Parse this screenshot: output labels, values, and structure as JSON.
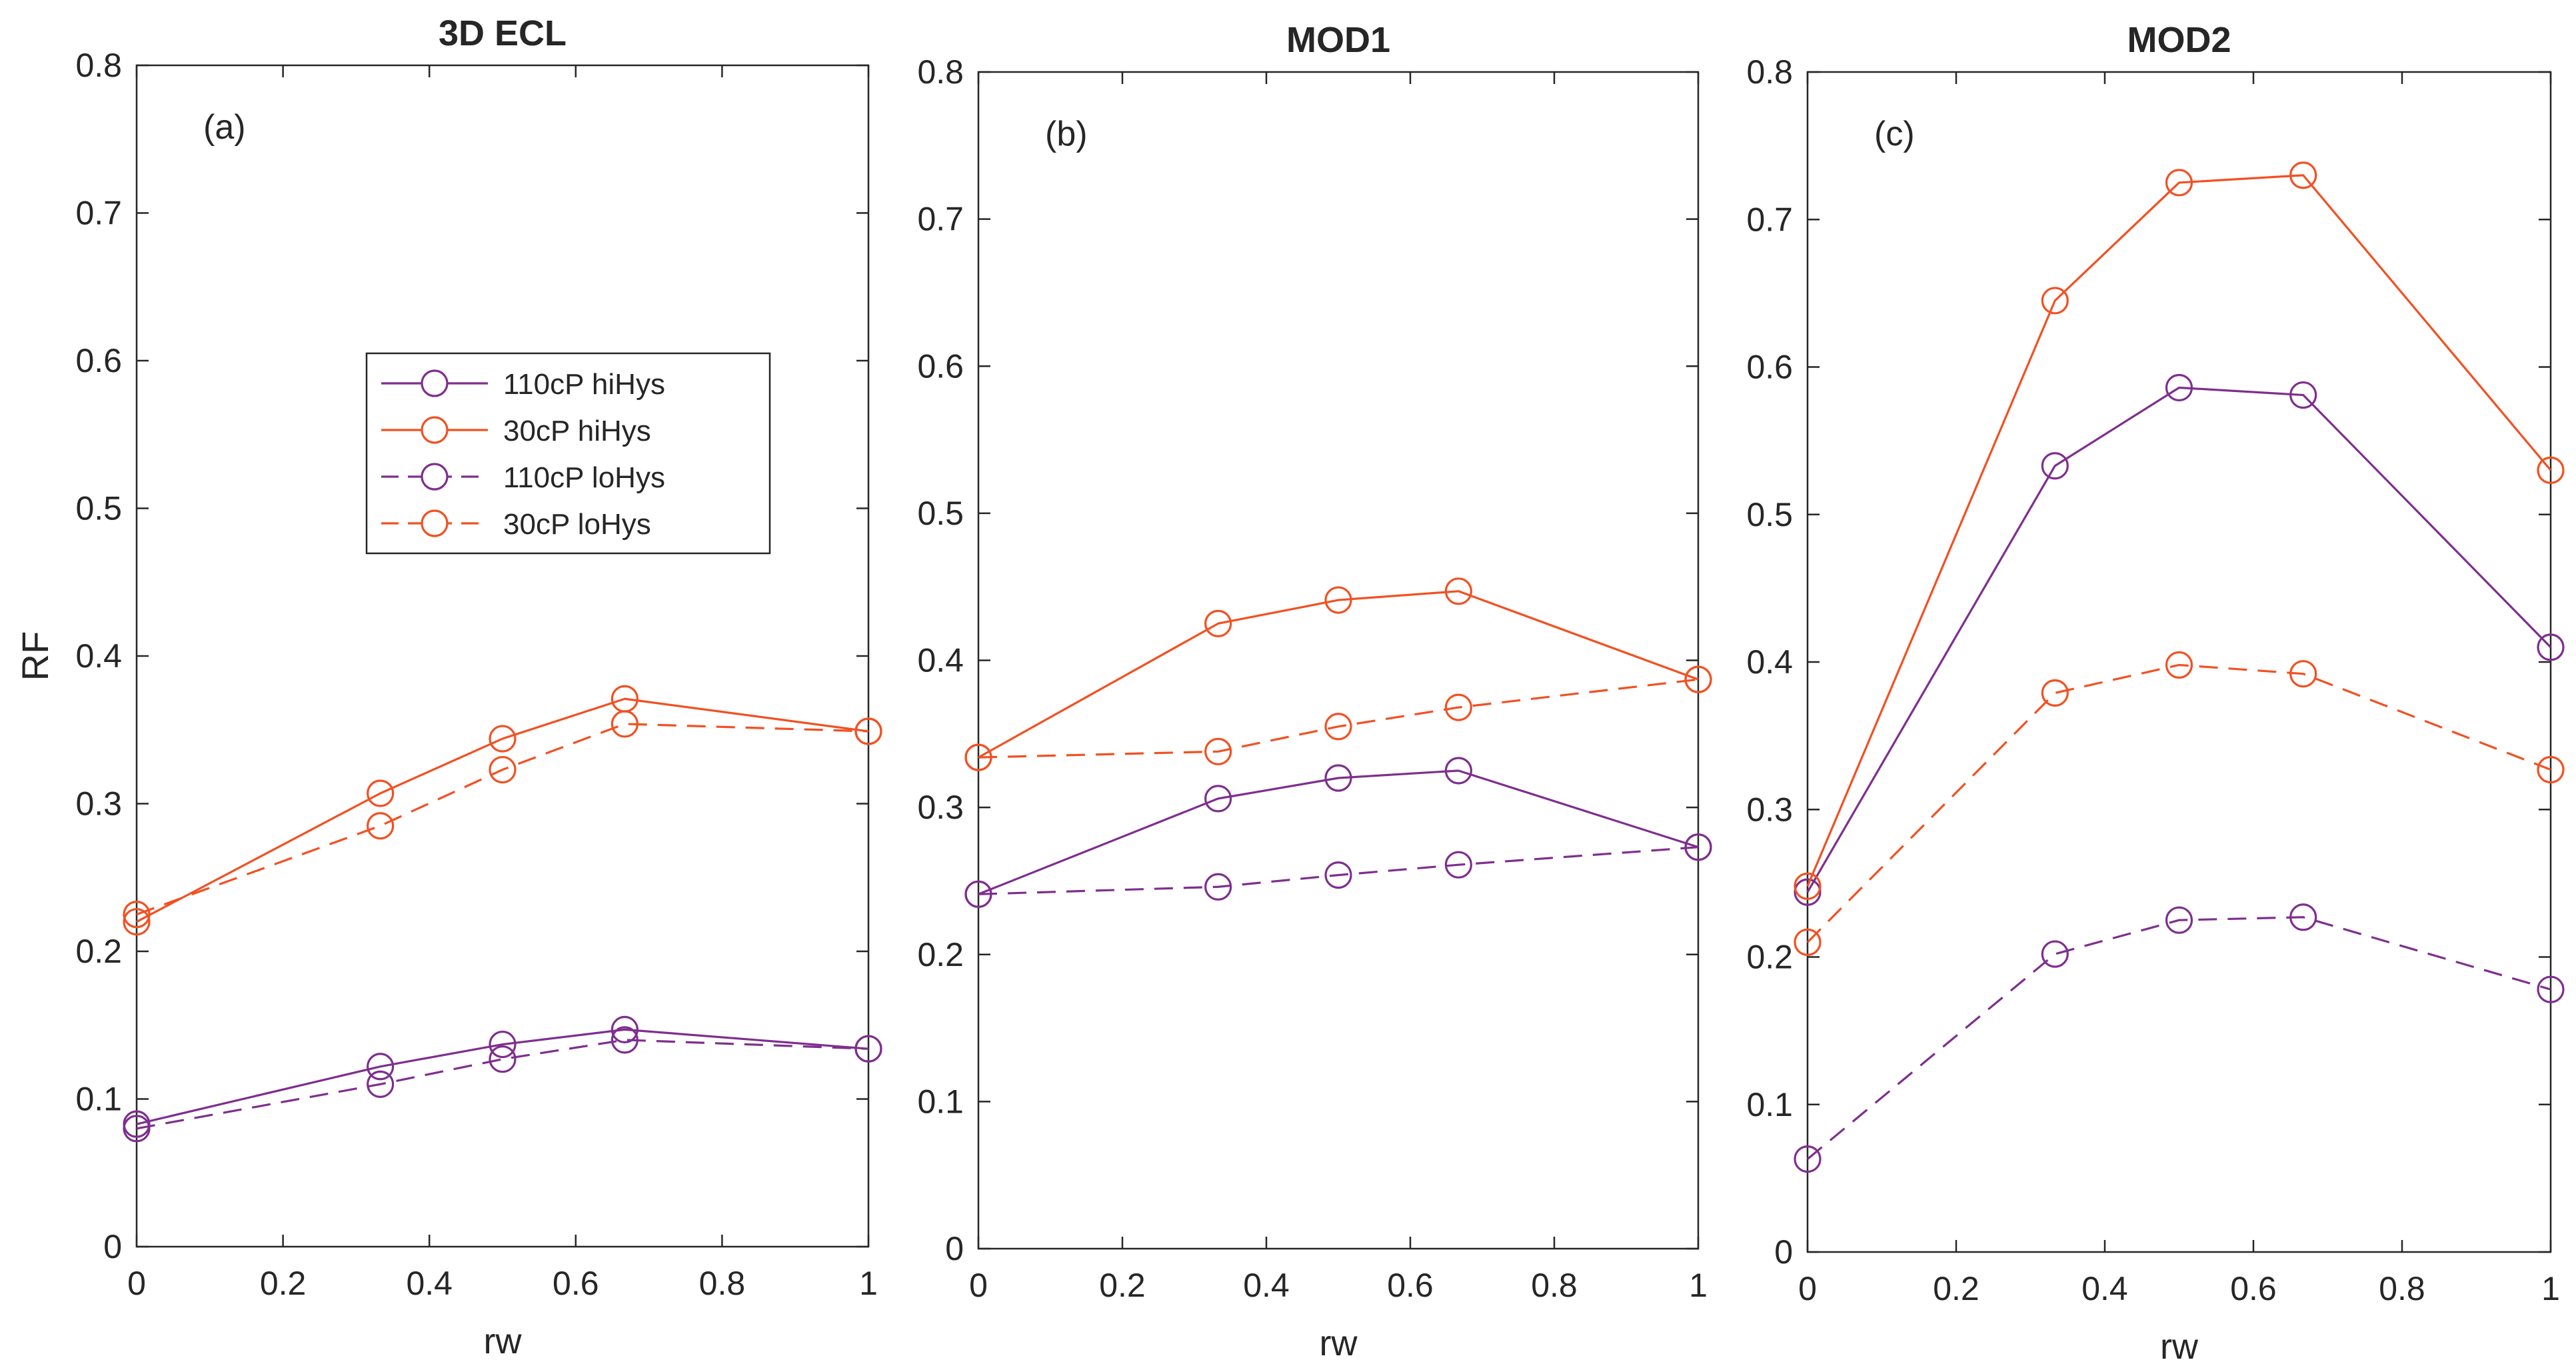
{
  "figure": {
    "ylabel": "RF",
    "legend": {
      "placement": "inside panel (a), upper-right area",
      "entries": [
        {
          "label": "110cP hiHys",
          "color": "#7E2F8E",
          "dash": "solid",
          "marker": "circle"
        },
        {
          "label": "30cP hiHys",
          "color": "#F25022",
          "dash": "solid",
          "marker": "circle"
        },
        {
          "label": "110cP loHys",
          "color": "#7E2F8E",
          "dash": "dashed",
          "marker": "circle"
        },
        {
          "label": "30cP loHys",
          "color": "#F25022",
          "dash": "dashed",
          "marker": "circle"
        }
      ]
    }
  },
  "chart_data": [
    {
      "type": "line",
      "title": "3D ECL",
      "panel_label": "(a)",
      "xlabel": "rw",
      "ylabel": "RF",
      "xlim": [
        0,
        1
      ],
      "ylim": [
        0,
        0.8
      ],
      "xticks": [
        "0",
        "0.2",
        "0.4",
        "0.6",
        "0.8",
        "1"
      ],
      "yticks": [
        "0",
        "0.1",
        "0.2",
        "0.3",
        "0.4",
        "0.5",
        "0.6",
        "0.7",
        "0.8"
      ],
      "x": [
        0,
        0.333,
        0.5,
        0.667,
        1
      ],
      "series": [
        {
          "name": "110cP hiHys",
          "color": "#7E2F8E",
          "dash": "solid",
          "values": [
            0.083,
            0.122,
            0.137,
            0.147,
            0.134
          ]
        },
        {
          "name": "30cP hiHys",
          "color": "#F25022",
          "dash": "solid",
          "values": [
            0.22,
            0.307,
            0.344,
            0.371,
            0.349
          ]
        },
        {
          "name": "110cP loHys",
          "color": "#7E2F8E",
          "dash": "dashed",
          "values": [
            0.08,
            0.11,
            0.127,
            0.14,
            0.134
          ]
        },
        {
          "name": "30cP loHys",
          "color": "#F25022",
          "dash": "dashed",
          "values": [
            0.225,
            0.285,
            0.323,
            0.354,
            0.349
          ]
        }
      ]
    },
    {
      "type": "line",
      "title": "MOD1",
      "panel_label": "(b)",
      "xlabel": "rw",
      "ylabel": "",
      "xlim": [
        0,
        1
      ],
      "ylim": [
        0,
        0.8
      ],
      "xticks": [
        "0",
        "0.2",
        "0.4",
        "0.6",
        "0.8",
        "1"
      ],
      "yticks": [
        "0",
        "0.1",
        "0.2",
        "0.3",
        "0.4",
        "0.5",
        "0.6",
        "0.7",
        "0.8"
      ],
      "x": [
        0,
        0.333,
        0.5,
        0.667,
        1
      ],
      "series": [
        {
          "name": "110cP hiHys",
          "color": "#7E2F8E",
          "dash": "solid",
          "values": [
            0.241,
            0.306,
            0.32,
            0.325,
            0.273
          ]
        },
        {
          "name": "30cP hiHys",
          "color": "#F25022",
          "dash": "solid",
          "values": [
            0.334,
            0.425,
            0.441,
            0.447,
            0.387
          ]
        },
        {
          "name": "110cP loHys",
          "color": "#7E2F8E",
          "dash": "dashed",
          "values": [
            0.241,
            0.246,
            0.254,
            0.261,
            0.273
          ]
        },
        {
          "name": "30cP loHys",
          "color": "#F25022",
          "dash": "dashed",
          "values": [
            0.334,
            0.338,
            0.355,
            0.368,
            0.387
          ]
        }
      ]
    },
    {
      "type": "line",
      "title": "MOD2",
      "panel_label": "(c)",
      "xlabel": "rw",
      "ylabel": "",
      "xlim": [
        0,
        1
      ],
      "ylim": [
        0,
        0.8
      ],
      "xticks": [
        "0",
        "0.2",
        "0.4",
        "0.6",
        "0.8",
        "1"
      ],
      "yticks": [
        "0",
        "0.1",
        "0.2",
        "0.3",
        "0.4",
        "0.5",
        "0.6",
        "0.7",
        "0.8"
      ],
      "x": [
        0,
        0.333,
        0.5,
        0.667,
        1
      ],
      "series": [
        {
          "name": "110cP hiHys",
          "color": "#7E2F8E",
          "dash": "solid",
          "values": [
            0.244,
            0.533,
            0.586,
            0.581,
            0.41
          ]
        },
        {
          "name": "30cP hiHys",
          "color": "#F25022",
          "dash": "solid",
          "values": [
            0.248,
            0.645,
            0.725,
            0.73,
            0.53
          ]
        },
        {
          "name": "110cP loHys",
          "color": "#7E2F8E",
          "dash": "dashed",
          "values": [
            0.063,
            0.202,
            0.225,
            0.227,
            0.178
          ]
        },
        {
          "name": "30cP loHys",
          "color": "#F25022",
          "dash": "dashed",
          "values": [
            0.21,
            0.379,
            0.398,
            0.392,
            0.327
          ]
        }
      ]
    }
  ]
}
